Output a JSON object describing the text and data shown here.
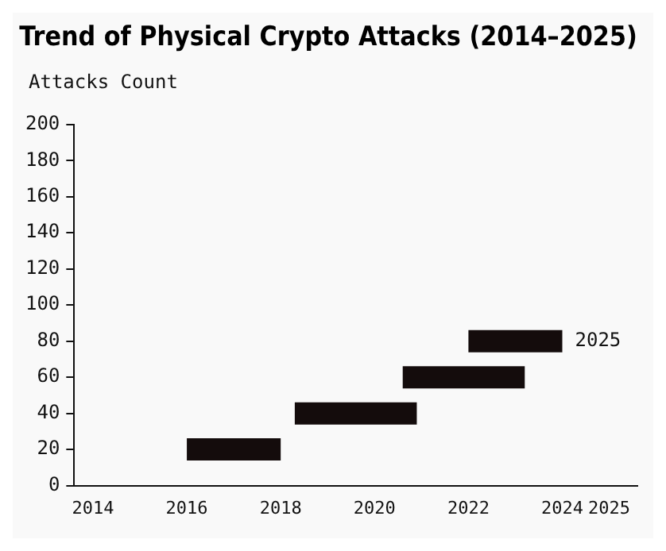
{
  "chart_data": {
    "type": "line",
    "title": "Trend of Physical Crypto Attacks (2014–2025)",
    "ylabel": "Attacks Count",
    "line_style": "solid",
    "marker": "none",
    "series": [
      {
        "x": [
          2016,
          2018
        ],
        "values": [
          20,
          20
        ],
        "color": "#140c0c"
      },
      {
        "x": [
          2018.3,
          2020.9
        ],
        "values": [
          40,
          40
        ],
        "color": "#140c0c"
      },
      {
        "x": [
          2020.6,
          2023.2
        ],
        "values": [
          60,
          60
        ],
        "color": "#140c0c"
      },
      {
        "x": [
          2022,
          2024
        ],
        "values": [
          80,
          80
        ],
        "color": "#140c0c"
      }
    ],
    "xlim": [
      2013.6,
      2025.6
    ],
    "xticks": [
      2014,
      2016,
      2018,
      2020,
      2022,
      2024,
      2025
    ],
    "ylim": [
      0,
      200
    ],
    "yticks": [
      0,
      20,
      40,
      60,
      80,
      100,
      120,
      140,
      160,
      180,
      200
    ],
    "annotations": [
      {
        "text": "2025",
        "x": 2024,
        "y": 80
      }
    ]
  }
}
